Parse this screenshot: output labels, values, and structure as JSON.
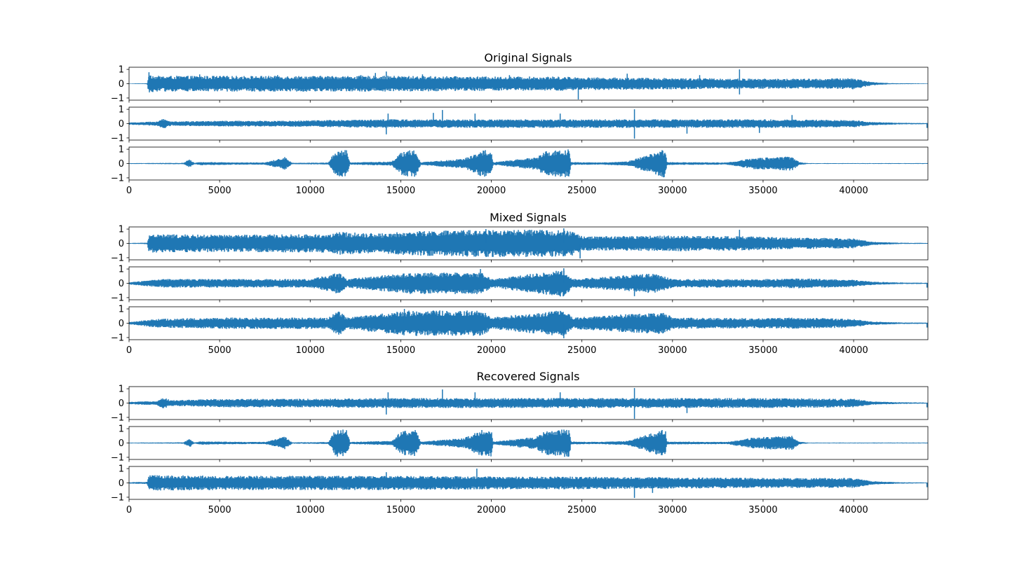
{
  "figure": {
    "background": "#ffffff",
    "line_color": "#1f77b4"
  },
  "chart_data": [
    {
      "type": "line",
      "title": "Original Signals",
      "xlim": [
        0,
        44100
      ],
      "ylim": [
        -1.15,
        1.15
      ],
      "xticks": [
        0,
        5000,
        10000,
        15000,
        20000,
        25000,
        30000,
        35000,
        40000
      ],
      "yticks": [
        -1,
        0,
        1
      ],
      "x_tick_labels_shown": true,
      "series": [
        {
          "envelope": [
            [
              0,
              0.02
            ],
            [
              1000,
              0.03
            ],
            [
              1100,
              0.75
            ],
            [
              1400,
              0.55
            ],
            [
              5000,
              0.55
            ],
            [
              10000,
              0.55
            ],
            [
              14000,
              0.55
            ],
            [
              15000,
              0.55
            ],
            [
              20000,
              0.5
            ],
            [
              24000,
              0.5
            ],
            [
              25000,
              0.45
            ],
            [
              30000,
              0.4
            ],
            [
              35000,
              0.35
            ],
            [
              38000,
              0.35
            ],
            [
              40000,
              0.4
            ],
            [
              41000,
              0.12
            ],
            [
              42000,
              0.04
            ],
            [
              44100,
              0.02
            ]
          ],
          "spikes": [
            [
              1100,
              0.8
            ],
            [
              3900,
              0.65
            ],
            [
              8200,
              0.6
            ],
            [
              12800,
              0.6
            ],
            [
              13600,
              0.75
            ],
            [
              14200,
              0.85
            ],
            [
              16200,
              0.65
            ],
            [
              21000,
              0.6
            ],
            [
              24800,
              -1.1
            ],
            [
              27500,
              0.7
            ],
            [
              31500,
              0.6
            ],
            [
              33700,
              1.0
            ],
            [
              33700,
              -0.75
            ]
          ]
        },
        {
          "envelope": [
            [
              0,
              0.08
            ],
            [
              1500,
              0.15
            ],
            [
              1900,
              0.35
            ],
            [
              2300,
              0.15
            ],
            [
              5000,
              0.2
            ],
            [
              8000,
              0.2
            ],
            [
              11000,
              0.25
            ],
            [
              14000,
              0.3
            ],
            [
              20000,
              0.3
            ],
            [
              25000,
              0.3
            ],
            [
              28000,
              0.3
            ],
            [
              32000,
              0.3
            ],
            [
              36000,
              0.3
            ],
            [
              40000,
              0.25
            ],
            [
              41000,
              0.12
            ],
            [
              42500,
              0.06
            ],
            [
              44100,
              0.04
            ]
          ],
          "spikes": [
            [
              14200,
              -0.75
            ],
            [
              14300,
              0.7
            ],
            [
              16800,
              0.75
            ],
            [
              17300,
              0.95
            ],
            [
              19100,
              0.7
            ],
            [
              23800,
              0.7
            ],
            [
              27900,
              1.0
            ],
            [
              27900,
              -1.05
            ],
            [
              30800,
              -0.7
            ],
            [
              34800,
              -0.65
            ],
            [
              36600,
              0.6
            ],
            [
              44050,
              -0.3
            ]
          ]
        },
        {
          "envelope": [
            [
              0,
              0.03
            ],
            [
              3000,
              0.05
            ],
            [
              3350,
              0.3
            ],
            [
              3600,
              0.05
            ],
            [
              4000,
              0.12
            ],
            [
              6000,
              0.08
            ],
            [
              7500,
              0.08
            ],
            [
              8600,
              0.45
            ],
            [
              9000,
              0.05
            ],
            [
              11000,
              0.07
            ],
            [
              11400,
              0.95
            ],
            [
              12000,
              0.95
            ],
            [
              12200,
              0.08
            ],
            [
              14500,
              0.15
            ],
            [
              15000,
              0.8
            ],
            [
              15800,
              1.0
            ],
            [
              16100,
              0.1
            ],
            [
              18500,
              0.35
            ],
            [
              19500,
              0.95
            ],
            [
              20000,
              0.95
            ],
            [
              20100,
              0.1
            ],
            [
              22500,
              0.45
            ],
            [
              23000,
              0.85
            ],
            [
              24300,
              1.0
            ],
            [
              24400,
              0.1
            ],
            [
              26000,
              0.08
            ],
            [
              27500,
              0.15
            ],
            [
              28500,
              0.55
            ],
            [
              29600,
              1.0
            ],
            [
              29700,
              0.1
            ],
            [
              33000,
              0.08
            ],
            [
              34500,
              0.4
            ],
            [
              36600,
              0.5
            ],
            [
              37000,
              0.1
            ],
            [
              37500,
              0.03
            ],
            [
              44100,
              0.03
            ]
          ],
          "spikes": []
        }
      ]
    },
    {
      "type": "line",
      "title": "Mixed Signals",
      "xlim": [
        0,
        44100
      ],
      "ylim": [
        -1.15,
        1.15
      ],
      "xticks": [
        0,
        5000,
        10000,
        15000,
        20000,
        25000,
        30000,
        35000,
        40000
      ],
      "yticks": [
        -1,
        0,
        1
      ],
      "x_tick_labels_shown": true,
      "series": [
        {
          "envelope": [
            [
              0,
              0.03
            ],
            [
              1000,
              0.05
            ],
            [
              1100,
              0.65
            ],
            [
              5000,
              0.6
            ],
            [
              11000,
              0.65
            ],
            [
              11600,
              0.8
            ],
            [
              14000,
              0.7
            ],
            [
              15500,
              0.85
            ],
            [
              19500,
              0.95
            ],
            [
              23500,
              0.95
            ],
            [
              24500,
              0.85
            ],
            [
              25000,
              0.5
            ],
            [
              30000,
              0.55
            ],
            [
              34000,
              0.5
            ],
            [
              37000,
              0.4
            ],
            [
              40000,
              0.35
            ],
            [
              41000,
              0.12
            ],
            [
              42500,
              0.05
            ],
            [
              44100,
              0.03
            ]
          ],
          "spikes": [
            [
              19700,
              1.0
            ],
            [
              24000,
              1.05
            ],
            [
              24900,
              -1.05
            ],
            [
              33700,
              0.95
            ]
          ]
        },
        {
          "envelope": [
            [
              0,
              0.08
            ],
            [
              1800,
              0.3
            ],
            [
              5000,
              0.3
            ],
            [
              10000,
              0.3
            ],
            [
              11600,
              0.75
            ],
            [
              12000,
              0.3
            ],
            [
              15500,
              0.75
            ],
            [
              19500,
              0.75
            ],
            [
              20000,
              0.3
            ],
            [
              24000,
              0.95
            ],
            [
              24500,
              0.3
            ],
            [
              29000,
              0.7
            ],
            [
              30000,
              0.3
            ],
            [
              35000,
              0.3
            ],
            [
              37000,
              0.35
            ],
            [
              40000,
              0.25
            ],
            [
              41000,
              0.12
            ],
            [
              42500,
              0.06
            ],
            [
              44100,
              0.04
            ]
          ],
          "spikes": [
            [
              19400,
              1.0
            ],
            [
              24000,
              1.05
            ],
            [
              27900,
              -0.9
            ],
            [
              44050,
              -0.3
            ]
          ]
        },
        {
          "envelope": [
            [
              0,
              0.08
            ],
            [
              1500,
              0.3
            ],
            [
              5000,
              0.4
            ],
            [
              11000,
              0.4
            ],
            [
              11600,
              0.9
            ],
            [
              12000,
              0.4
            ],
            [
              15500,
              0.9
            ],
            [
              19500,
              0.9
            ],
            [
              20000,
              0.4
            ],
            [
              24000,
              0.95
            ],
            [
              24500,
              0.4
            ],
            [
              29500,
              0.8
            ],
            [
              30000,
              0.4
            ],
            [
              35000,
              0.35
            ],
            [
              37000,
              0.4
            ],
            [
              40000,
              0.3
            ],
            [
              41000,
              0.12
            ],
            [
              42500,
              0.06
            ],
            [
              44100,
              0.04
            ]
          ],
          "spikes": [
            [
              15200,
              1.0
            ],
            [
              24000,
              -1.05
            ],
            [
              44050,
              -0.3
            ]
          ]
        }
      ]
    },
    {
      "type": "line",
      "title": "Recovered Signals",
      "xlim": [
        0,
        44100
      ],
      "ylim": [
        -1.15,
        1.15
      ],
      "xticks": [
        0,
        5000,
        10000,
        15000,
        20000,
        25000,
        30000,
        35000,
        40000
      ],
      "yticks": [
        -1,
        0,
        1
      ],
      "x_tick_labels_shown": true,
      "series": [
        {
          "envelope": [
            [
              0,
              0.08
            ],
            [
              1500,
              0.15
            ],
            [
              1900,
              0.4
            ],
            [
              2300,
              0.2
            ],
            [
              5000,
              0.3
            ],
            [
              10000,
              0.3
            ],
            [
              14000,
              0.35
            ],
            [
              20000,
              0.35
            ],
            [
              25000,
              0.35
            ],
            [
              28000,
              0.35
            ],
            [
              32000,
              0.35
            ],
            [
              36000,
              0.35
            ],
            [
              40000,
              0.3
            ],
            [
              41000,
              0.12
            ],
            [
              42500,
              0.06
            ],
            [
              44100,
              0.04
            ]
          ],
          "spikes": [
            [
              14200,
              -0.8
            ],
            [
              14300,
              0.75
            ],
            [
              17300,
              0.95
            ],
            [
              19100,
              0.75
            ],
            [
              23800,
              0.75
            ],
            [
              27900,
              1.05
            ],
            [
              27900,
              -1.1
            ],
            [
              30800,
              -0.7
            ],
            [
              44050,
              -0.3
            ]
          ]
        },
        {
          "envelope": [
            [
              0,
              0.03
            ],
            [
              3000,
              0.05
            ],
            [
              3350,
              0.3
            ],
            [
              3600,
              0.05
            ],
            [
              4000,
              0.12
            ],
            [
              6000,
              0.08
            ],
            [
              7500,
              0.08
            ],
            [
              8600,
              0.45
            ],
            [
              9000,
              0.05
            ],
            [
              11000,
              0.07
            ],
            [
              11400,
              0.95
            ],
            [
              12000,
              0.95
            ],
            [
              12200,
              0.08
            ],
            [
              14500,
              0.15
            ],
            [
              15000,
              0.8
            ],
            [
              15800,
              1.0
            ],
            [
              16100,
              0.1
            ],
            [
              18500,
              0.35
            ],
            [
              19500,
              0.95
            ],
            [
              20000,
              0.95
            ],
            [
              20100,
              0.1
            ],
            [
              22500,
              0.45
            ],
            [
              23000,
              0.85
            ],
            [
              24300,
              1.0
            ],
            [
              24400,
              0.1
            ],
            [
              26000,
              0.08
            ],
            [
              27500,
              0.15
            ],
            [
              28500,
              0.55
            ],
            [
              29600,
              1.0
            ],
            [
              29700,
              0.1
            ],
            [
              33000,
              0.08
            ],
            [
              34500,
              0.4
            ],
            [
              36600,
              0.5
            ],
            [
              37000,
              0.1
            ],
            [
              37500,
              0.03
            ],
            [
              44100,
              0.03
            ]
          ],
          "spikes": []
        },
        {
          "envelope": [
            [
              0,
              0.05
            ],
            [
              1000,
              0.08
            ],
            [
              1100,
              0.55
            ],
            [
              5000,
              0.5
            ],
            [
              10000,
              0.5
            ],
            [
              14000,
              0.5
            ],
            [
              20000,
              0.45
            ],
            [
              25000,
              0.45
            ],
            [
              30000,
              0.4
            ],
            [
              35000,
              0.35
            ],
            [
              38000,
              0.35
            ],
            [
              40000,
              0.35
            ],
            [
              41000,
              0.12
            ],
            [
              42500,
              0.05
            ],
            [
              44100,
              0.03
            ]
          ],
          "spikes": [
            [
              14200,
              0.75
            ],
            [
              19200,
              1.0
            ],
            [
              27900,
              -1.05
            ],
            [
              28900,
              -0.7
            ],
            [
              44050,
              -0.3
            ]
          ]
        }
      ]
    }
  ]
}
